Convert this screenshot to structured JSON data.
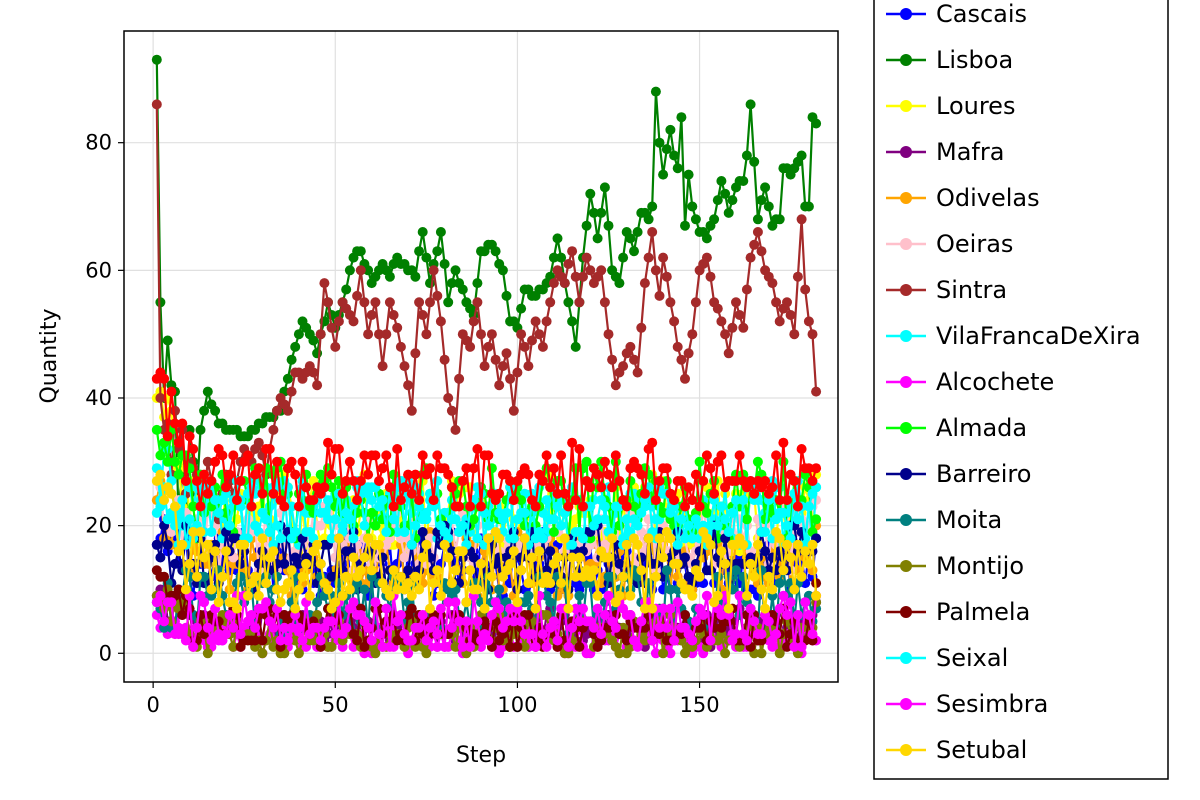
{
  "chart_data": {
    "type": "line",
    "xlabel": "Step",
    "ylabel": "Quantity",
    "xlim": [
      -8,
      188
    ],
    "ylim": [
      -4.5,
      97.5
    ],
    "xticks": [
      0,
      50,
      100,
      150
    ],
    "yticks": [
      0,
      20,
      40,
      60,
      80
    ],
    "grid": true,
    "legend_position": "right",
    "series": [
      {
        "name": "Cascais",
        "color": "#0000ff",
        "start": 17,
        "end": 18,
        "level": 14,
        "var": 5
      },
      {
        "name": "Lisboa",
        "color": "#008000",
        "points": [
          [
            1,
            93
          ],
          [
            2,
            55
          ],
          [
            3,
            40
          ],
          [
            4,
            49
          ],
          [
            5,
            42
          ],
          [
            6,
            41
          ],
          [
            7,
            21
          ],
          [
            8,
            30
          ],
          [
            9,
            20
          ],
          [
            10,
            35
          ],
          [
            12,
            25
          ],
          [
            13,
            35
          ],
          [
            15,
            41
          ],
          [
            18,
            36
          ],
          [
            20,
            35
          ],
          [
            22,
            35
          ],
          [
            25,
            34
          ],
          [
            28,
            35
          ],
          [
            30,
            36
          ],
          [
            32,
            37
          ],
          [
            35,
            38
          ],
          [
            37,
            43
          ],
          [
            38,
            46
          ],
          [
            41,
            52
          ],
          [
            43,
            50
          ],
          [
            45,
            47
          ],
          [
            48,
            55
          ],
          [
            50,
            51
          ],
          [
            52,
            55
          ],
          [
            55,
            62
          ],
          [
            57,
            63
          ],
          [
            60,
            58
          ],
          [
            63,
            61
          ],
          [
            65,
            59
          ],
          [
            67,
            62
          ],
          [
            70,
            60
          ],
          [
            72,
            59
          ],
          [
            74,
            66
          ],
          [
            76,
            58
          ],
          [
            79,
            66
          ],
          [
            81,
            55
          ],
          [
            83,
            60
          ],
          [
            86,
            55
          ],
          [
            88,
            53
          ],
          [
            90,
            63
          ],
          [
            93,
            64
          ],
          [
            96,
            60
          ],
          [
            98,
            52
          ],
          [
            100,
            51
          ],
          [
            102,
            57
          ],
          [
            104,
            56
          ],
          [
            107,
            57
          ],
          [
            109,
            59
          ],
          [
            111,
            65
          ],
          [
            114,
            55
          ],
          [
            116,
            48
          ],
          [
            118,
            62
          ],
          [
            120,
            72
          ],
          [
            122,
            65
          ],
          [
            124,
            73
          ],
          [
            126,
            60
          ],
          [
            128,
            58
          ],
          [
            130,
            66
          ],
          [
            132,
            63
          ],
          [
            134,
            69
          ],
          [
            136,
            68
          ],
          [
            137,
            70
          ],
          [
            138,
            88
          ],
          [
            139,
            80
          ],
          [
            140,
            75
          ],
          [
            141,
            79
          ],
          [
            142,
            82
          ],
          [
            143,
            78
          ],
          [
            144,
            76
          ],
          [
            145,
            84
          ],
          [
            146,
            67
          ],
          [
            147,
            75
          ],
          [
            148,
            70
          ],
          [
            150,
            66
          ],
          [
            152,
            65
          ],
          [
            154,
            68
          ],
          [
            156,
            74
          ],
          [
            158,
            69
          ],
          [
            160,
            73
          ],
          [
            162,
            74
          ],
          [
            163,
            78
          ],
          [
            164,
            86
          ],
          [
            166,
            68
          ],
          [
            168,
            73
          ],
          [
            170,
            67
          ],
          [
            172,
            68
          ],
          [
            173,
            76
          ],
          [
            175,
            75
          ],
          [
            177,
            77
          ],
          [
            178,
            78
          ],
          [
            179,
            70
          ],
          [
            180,
            70
          ],
          [
            181,
            84
          ],
          [
            182,
            83
          ]
        ]
      },
      {
        "name": "Loures",
        "color": "#ffff00",
        "start": 40,
        "end": 28,
        "level": 22,
        "var": 6
      },
      {
        "name": "Mafra",
        "color": "#800080",
        "start": 9,
        "end": 8,
        "level": 4,
        "var": 3
      },
      {
        "name": "Odivelas",
        "color": "#ffa500",
        "start": 24,
        "end": 20,
        "level": 14,
        "var": 5
      },
      {
        "name": "Oeiras",
        "color": "#ffc0cb",
        "start": 22,
        "end": 24,
        "level": 18,
        "var": 5
      },
      {
        "name": "Sintra",
        "color": "#a52a2a",
        "points": [
          [
            1,
            86
          ],
          [
            2,
            40
          ],
          [
            3,
            35
          ],
          [
            4,
            36
          ],
          [
            5,
            28
          ],
          [
            6,
            38
          ],
          [
            7,
            32
          ],
          [
            8,
            35
          ],
          [
            9,
            25
          ],
          [
            10,
            30
          ],
          [
            12,
            28
          ],
          [
            14,
            25
          ],
          [
            15,
            30
          ],
          [
            18,
            21
          ],
          [
            20,
            28
          ],
          [
            22,
            25
          ],
          [
            25,
            32
          ],
          [
            27,
            30
          ],
          [
            29,
            33
          ],
          [
            31,
            28
          ],
          [
            33,
            35
          ],
          [
            35,
            40
          ],
          [
            37,
            38
          ],
          [
            39,
            44
          ],
          [
            41,
            43
          ],
          [
            43,
            45
          ],
          [
            45,
            42
          ],
          [
            47,
            58
          ],
          [
            50,
            48
          ],
          [
            52,
            55
          ],
          [
            55,
            52
          ],
          [
            57,
            60
          ],
          [
            59,
            50
          ],
          [
            61,
            55
          ],
          [
            63,
            45
          ],
          [
            65,
            55
          ],
          [
            67,
            51
          ],
          [
            69,
            45
          ],
          [
            71,
            38
          ],
          [
            73,
            55
          ],
          [
            75,
            50
          ],
          [
            77,
            60
          ],
          [
            79,
            52
          ],
          [
            81,
            40
          ],
          [
            83,
            35
          ],
          [
            85,
            50
          ],
          [
            87,
            48
          ],
          [
            89,
            55
          ],
          [
            91,
            45
          ],
          [
            93,
            50
          ],
          [
            95,
            42
          ],
          [
            97,
            47
          ],
          [
            99,
            38
          ],
          [
            101,
            50
          ],
          [
            103,
            45
          ],
          [
            105,
            52
          ],
          [
            107,
            48
          ],
          [
            109,
            55
          ],
          [
            111,
            60
          ],
          [
            113,
            58
          ],
          [
            115,
            63
          ],
          [
            117,
            55
          ],
          [
            119,
            62
          ],
          [
            121,
            58
          ],
          [
            123,
            60
          ],
          [
            125,
            50
          ],
          [
            127,
            42
          ],
          [
            129,
            45
          ],
          [
            131,
            48
          ],
          [
            133,
            44
          ],
          [
            135,
            58
          ],
          [
            137,
            66
          ],
          [
            138,
            60
          ],
          [
            139,
            56
          ],
          [
            140,
            62
          ],
          [
            142,
            55
          ],
          [
            144,
            48
          ],
          [
            146,
            43
          ],
          [
            148,
            50
          ],
          [
            150,
            60
          ],
          [
            152,
            62
          ],
          [
            154,
            55
          ],
          [
            156,
            52
          ],
          [
            158,
            47
          ],
          [
            160,
            55
          ],
          [
            162,
            51
          ],
          [
            164,
            62
          ],
          [
            166,
            66
          ],
          [
            168,
            60
          ],
          [
            170,
            58
          ],
          [
            172,
            52
          ],
          [
            174,
            55
          ],
          [
            176,
            50
          ],
          [
            178,
            68
          ],
          [
            179,
            57
          ],
          [
            180,
            52
          ],
          [
            181,
            50
          ],
          [
            182,
            41
          ]
        ]
      },
      {
        "name": "VilaFrancaDeXira",
        "color": "#00ffff",
        "start": 29,
        "end": 26,
        "level": 22,
        "var": 5
      },
      {
        "name": "Alcochete",
        "color": "#ff00ff",
        "start": 6,
        "end": 2,
        "level": 2,
        "var": 2
      },
      {
        "name": "Almada",
        "color": "#00ff00",
        "start": 35,
        "end": 21,
        "level": 24,
        "var": 6
      },
      {
        "name": "Barreiro",
        "color": "#00008b",
        "start": 17,
        "end": 18,
        "level": 15,
        "var": 5
      },
      {
        "name": "Moita",
        "color": "#008080",
        "start": 8,
        "end": 7,
        "level": 8,
        "var": 5
      },
      {
        "name": "Montijo",
        "color": "#808000",
        "start": 9,
        "end": 8,
        "level": 3,
        "var": 3
      },
      {
        "name": "Palmela",
        "color": "#800000",
        "start": 13,
        "end": 11,
        "level": 4,
        "var": 3
      },
      {
        "name": "Seixal",
        "color": "#00ffff",
        "start": 22,
        "end": 26,
        "level": 22,
        "var": 5
      },
      {
        "name": "Sesimbra",
        "color": "#ff00ff",
        "start": 8,
        "end": 9,
        "level": 5,
        "var": 4
      },
      {
        "name": "Setubal",
        "color": "#ffd700",
        "start": 27,
        "end": 9,
        "level": 13,
        "var": 6
      }
    ],
    "extra_series": [
      {
        "color": "#ff0000",
        "start": 43,
        "end": 29,
        "level": 28,
        "var": 5
      }
    ]
  }
}
